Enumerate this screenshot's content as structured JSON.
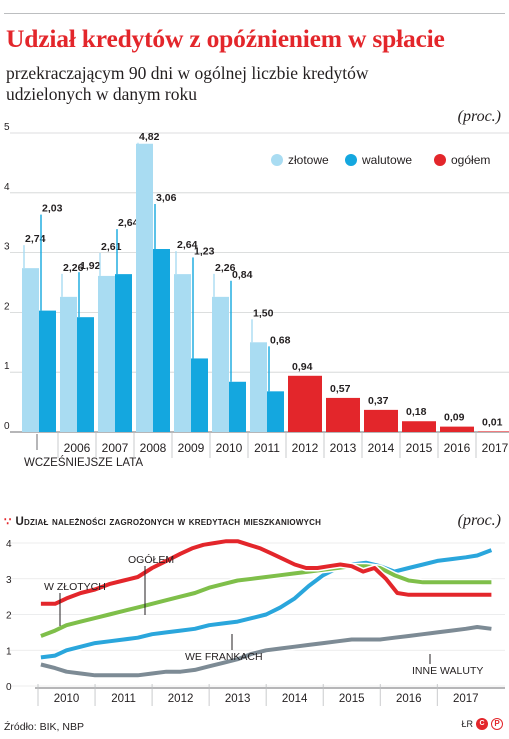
{
  "header": {
    "title": "Udział kredytów z opóźnieniem w spłacie",
    "subtitle": "przekraczającym 90 dni w ogólnej liczbie kredytów udzielonych w danym roku",
    "unit": "(proc.)"
  },
  "section2": {
    "title": "Udział należności zagrożonych w kredytach mieszkaniowych",
    "unit": "(proc.)"
  },
  "footer": {
    "source": "Źródło: BIK, NBP",
    "credit": "ŁR",
    "logo_c": "C",
    "logo_p": "P"
  },
  "colors": {
    "zlotowe": "#a9dcf2",
    "walutowe": "#14a7df",
    "ogolem": "#e3262b",
    "w_zlotych": "#7fbf4a",
    "frankach": "#2aa6dc",
    "inne": "#7d8b95",
    "text": "#231f20"
  },
  "chart_data": [
    {
      "type": "bar",
      "y_ticks": [
        "0",
        "1",
        "2",
        "3",
        "4",
        "5"
      ],
      "ylim": [
        0,
        5
      ],
      "categories": [
        "WCZEŚNIEJSZE LATA",
        "2006",
        "2007",
        "2008",
        "2009",
        "2010",
        "2011",
        "2012",
        "2013",
        "2014",
        "2015",
        "2016",
        "2017"
      ],
      "series": [
        {
          "name": "złotowe",
          "values": [
            2.74,
            2.26,
            2.61,
            4.82,
            2.64,
            2.26,
            1.5,
            null,
            null,
            null,
            null,
            null,
            null
          ],
          "labels": [
            "2,74",
            "2,26",
            "2,61",
            "4,82",
            "2,64",
            "2,26",
            "1,50",
            "",
            "",
            "",
            "",
            "",
            ""
          ]
        },
        {
          "name": "walutowe",
          "values": [
            2.03,
            1.92,
            2.64,
            3.06,
            1.23,
            0.84,
            0.68,
            null,
            null,
            null,
            null,
            null,
            null
          ],
          "labels": [
            "2,03",
            "1,92",
            "2,64",
            "3,06",
            "1,23",
            "0,84",
            "0,68",
            "",
            "",
            "",
            "",
            "",
            ""
          ]
        },
        {
          "name": "ogółem",
          "values": [
            null,
            null,
            null,
            null,
            null,
            null,
            null,
            0.94,
            0.57,
            0.37,
            0.18,
            0.09,
            0.01
          ],
          "labels": [
            "",
            "",
            "",
            "",
            "",
            "",
            "",
            "0,94",
            "0,57",
            "0,37",
            "0,18",
            "0,09",
            "0,01"
          ]
        }
      ],
      "legend": "top-right"
    },
    {
      "type": "line",
      "y_ticks": [
        "0",
        "1",
        "2",
        "3",
        "4"
      ],
      "ylim": [
        0,
        4
      ],
      "x_ticks": [
        "2010",
        "2011",
        "2012",
        "2013",
        "2014",
        "2015",
        "2016",
        "2017"
      ],
      "xlim": [
        2009.5,
        2017.6
      ],
      "series": [
        {
          "name": "OGÓŁEM",
          "x": [
            2009.55,
            2009.8,
            2010.0,
            2010.25,
            2010.5,
            2010.75,
            2011.0,
            2011.25,
            2011.5,
            2011.75,
            2012.0,
            2012.2,
            2012.4,
            2012.6,
            2012.8,
            2013.0,
            2013.2,
            2013.4,
            2013.6,
            2013.8,
            2014.0,
            2014.2,
            2014.4,
            2014.6,
            2014.8,
            2015.0,
            2015.2,
            2015.4,
            2015.6,
            2015.8,
            2016.0,
            2016.2,
            2016.4,
            2016.6,
            2016.8,
            2017.0,
            2017.2,
            2017.45
          ],
          "y": [
            2.3,
            2.3,
            2.45,
            2.6,
            2.7,
            2.85,
            2.95,
            3.05,
            3.3,
            3.5,
            3.7,
            3.85,
            3.95,
            4.0,
            4.05,
            4.05,
            3.95,
            3.85,
            3.7,
            3.55,
            3.4,
            3.3,
            3.3,
            3.35,
            3.4,
            3.35,
            3.2,
            3.3,
            3.0,
            2.6,
            2.55,
            2.55,
            2.55,
            2.55,
            2.55,
            2.55,
            2.55,
            2.55
          ]
        },
        {
          "name": "W ZŁOTYCH",
          "x": [
            2009.55,
            2009.8,
            2010.0,
            2010.25,
            2010.5,
            2010.75,
            2011.0,
            2011.25,
            2011.5,
            2011.75,
            2012.0,
            2012.25,
            2012.5,
            2012.75,
            2013.0,
            2013.25,
            2013.5,
            2013.75,
            2014.0,
            2014.25,
            2014.5,
            2014.75,
            2015.0,
            2015.25,
            2015.5,
            2015.75,
            2016.0,
            2016.25,
            2016.5,
            2016.75,
            2017.0,
            2017.2,
            2017.45
          ],
          "y": [
            1.4,
            1.55,
            1.7,
            1.8,
            1.9,
            2.0,
            2.1,
            2.2,
            2.3,
            2.4,
            2.5,
            2.6,
            2.75,
            2.85,
            2.95,
            3.0,
            3.05,
            3.1,
            3.15,
            3.2,
            3.25,
            3.3,
            3.35,
            3.35,
            3.3,
            3.1,
            2.95,
            2.9,
            2.9,
            2.9,
            2.9,
            2.9,
            2.9
          ]
        },
        {
          "name": "WE FRANKACH",
          "x": [
            2009.55,
            2009.8,
            2010.0,
            2010.25,
            2010.5,
            2010.75,
            2011.0,
            2011.25,
            2011.5,
            2011.75,
            2012.0,
            2012.25,
            2012.5,
            2012.75,
            2013.0,
            2013.25,
            2013.5,
            2013.75,
            2014.0,
            2014.25,
            2014.5,
            2014.75,
            2015.0,
            2015.25,
            2015.5,
            2015.75,
            2016.0,
            2016.25,
            2016.5,
            2016.75,
            2017.0,
            2017.2,
            2017.45
          ],
          "y": [
            0.8,
            0.85,
            1.0,
            1.1,
            1.2,
            1.25,
            1.3,
            1.35,
            1.45,
            1.5,
            1.55,
            1.6,
            1.7,
            1.75,
            1.8,
            1.9,
            2.0,
            2.2,
            2.45,
            2.8,
            3.1,
            3.3,
            3.4,
            3.45,
            3.35,
            3.2,
            3.3,
            3.4,
            3.5,
            3.55,
            3.6,
            3.65,
            3.8
          ]
        },
        {
          "name": "INNE WALUTY",
          "x": [
            2009.55,
            2009.8,
            2010.0,
            2010.25,
            2010.5,
            2010.75,
            2011.0,
            2011.25,
            2011.5,
            2011.75,
            2012.0,
            2012.25,
            2012.5,
            2012.75,
            2013.0,
            2013.25,
            2013.5,
            2013.75,
            2014.0,
            2014.25,
            2014.5,
            2014.75,
            2015.0,
            2015.25,
            2015.5,
            2015.75,
            2016.0,
            2016.25,
            2016.5,
            2016.75,
            2017.0,
            2017.2,
            2017.45
          ],
          "y": [
            0.6,
            0.5,
            0.4,
            0.35,
            0.3,
            0.3,
            0.3,
            0.3,
            0.35,
            0.4,
            0.4,
            0.45,
            0.55,
            0.65,
            0.75,
            0.9,
            1.0,
            1.05,
            1.1,
            1.15,
            1.2,
            1.25,
            1.3,
            1.3,
            1.3,
            1.35,
            1.4,
            1.45,
            1.5,
            1.55,
            1.6,
            1.65,
            1.6
          ]
        }
      ]
    }
  ]
}
